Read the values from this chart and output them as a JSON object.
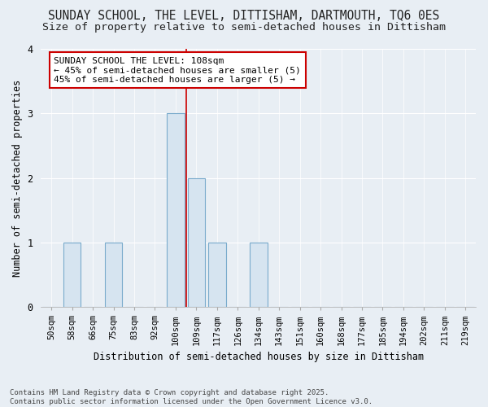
{
  "title_line1": "SUNDAY SCHOOL, THE LEVEL, DITTISHAM, DARTMOUTH, TQ6 0ES",
  "title_line2": "Size of property relative to semi-detached houses in Dittisham",
  "xlabel": "Distribution of semi-detached houses by size in Dittisham",
  "ylabel": "Number of semi-detached properties",
  "categories": [
    "50sqm",
    "58sqm",
    "66sqm",
    "75sqm",
    "83sqm",
    "92sqm",
    "100sqm",
    "109sqm",
    "117sqm",
    "126sqm",
    "134sqm",
    "143sqm",
    "151sqm",
    "160sqm",
    "168sqm",
    "177sqm",
    "185sqm",
    "194sqm",
    "202sqm",
    "211sqm",
    "219sqm"
  ],
  "values": [
    0,
    1,
    0,
    1,
    0,
    0,
    3,
    2,
    1,
    0,
    1,
    0,
    0,
    0,
    0,
    0,
    0,
    0,
    0,
    0,
    0
  ],
  "bar_color": "#d6e4f0",
  "bar_edge_color": "#7aabcc",
  "vline_x": 6.5,
  "vline_color": "#cc0000",
  "annotation_title": "SUNDAY SCHOOL THE LEVEL: 108sqm",
  "annotation_line2": "← 45% of semi-detached houses are smaller (5)",
  "annotation_line3": "45% of semi-detached houses are larger (5) →",
  "annotation_box_color": "#ffffff",
  "annotation_box_edge": "#cc0000",
  "ylim": [
    0,
    4
  ],
  "yticks": [
    0,
    1,
    2,
    3,
    4
  ],
  "footnote_line1": "Contains HM Land Registry data © Crown copyright and database right 2025.",
  "footnote_line2": "Contains public sector information licensed under the Open Government Licence v3.0.",
  "bg_color": "#e8eef4",
  "plot_bg_color": "#e8eef4",
  "grid_color": "#ffffff",
  "title_fontsize": 10.5,
  "subtitle_fontsize": 9.5,
  "tick_fontsize": 7.5,
  "ylabel_fontsize": 8.5,
  "xlabel_fontsize": 8.5,
  "ann_fontsize": 8,
  "footnote_fontsize": 6.5
}
